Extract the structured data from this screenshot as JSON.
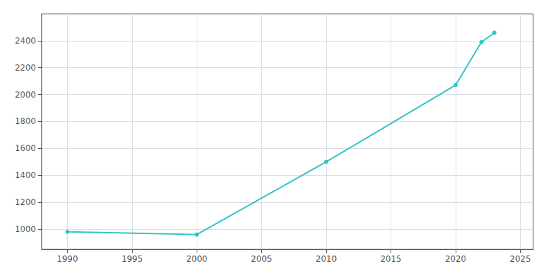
{
  "chart_data": {
    "type": "line",
    "x": [
      1990,
      2000,
      2010,
      2020,
      2022,
      2023
    ],
    "values": [
      980,
      960,
      1500,
      2070,
      2390,
      2460
    ],
    "color": "#2ec4c4",
    "marker": "circle",
    "xlim": [
      1988,
      2026
    ],
    "ylim": [
      850,
      2600
    ],
    "xticks": [
      1990,
      1995,
      2000,
      2005,
      2010,
      2015,
      2020,
      2025
    ],
    "yticks": [
      1000,
      1200,
      1400,
      1600,
      1800,
      2000,
      2200,
      2400
    ],
    "grid": true
  }
}
